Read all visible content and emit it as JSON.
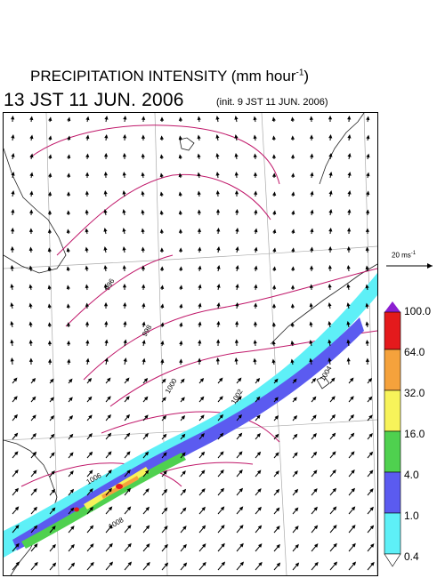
{
  "title": {
    "main": "PRECIPITATION INTENSITY (mm hour",
    "exp": "-1",
    "close": ")"
  },
  "datetime": "13 JST 11 JUN. 2006",
  "init": "(init. 9 JST 11 JUN. 2006)",
  "reference_vector": {
    "label": "20 ms",
    "exp": "-1"
  },
  "colorbar": {
    "top_arrow_color": "#8b1fd1",
    "labels": [
      "100.0",
      "64.0",
      "32.0",
      "16.0",
      "4.0",
      "1.0",
      "0.4"
    ],
    "colors": [
      "#e41a1c",
      "#f5a23c",
      "#f7f35a",
      "#4fd14f",
      "#5b5bf0",
      "#5ef0f7"
    ]
  },
  "contour_labels": [
    "996",
    "998",
    "1000",
    "1002",
    "1004",
    "1006",
    "1008"
  ],
  "colors": {
    "contour": "#c0186a",
    "grid": "#aaaaaa",
    "coast": "#222222"
  }
}
